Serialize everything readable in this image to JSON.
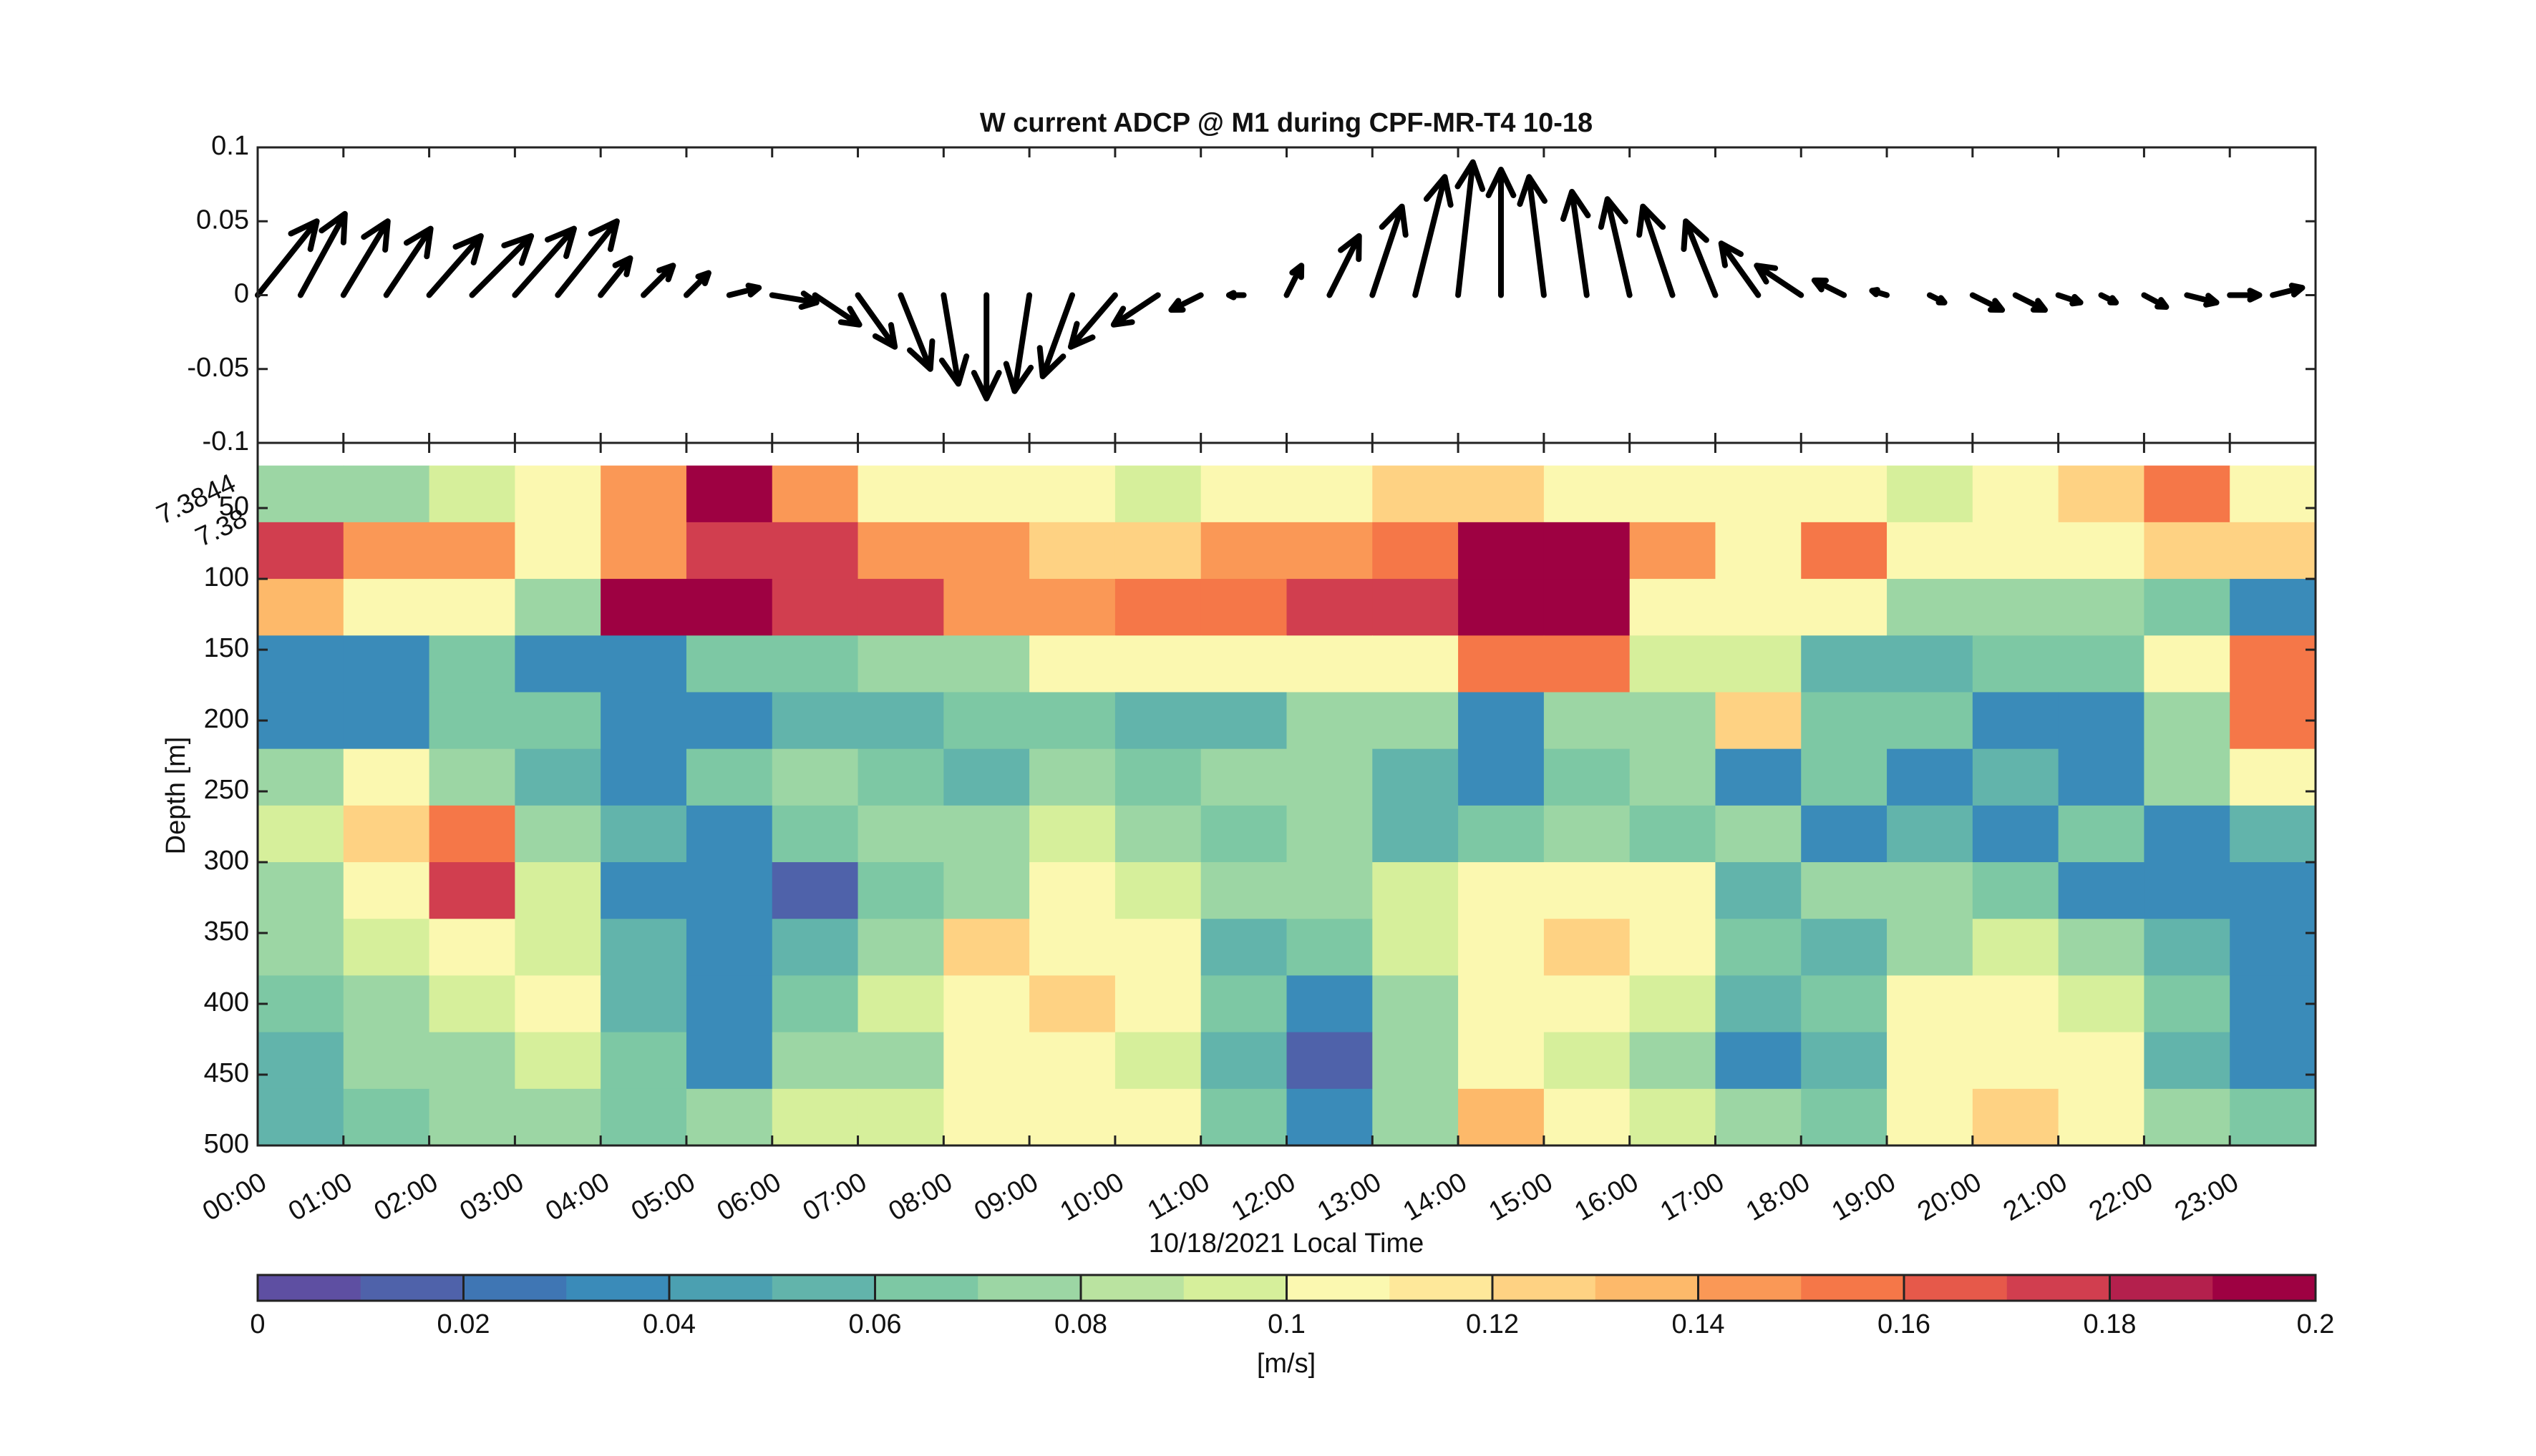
{
  "chart_data": [
    {
      "type": "quiver",
      "title": "W current ADCP @ M1 during CPF-MR-T4 10-18",
      "x": [
        0,
        0.5,
        1,
        1.5,
        2,
        2.5,
        3,
        3.5,
        4,
        4.5,
        5,
        5.5,
        6,
        6.5,
        7,
        7.5,
        8,
        8.5,
        9,
        9.5,
        10,
        10.5,
        11,
        11.5,
        12,
        12.5,
        13,
        13.5,
        14,
        14.5,
        15,
        15.5,
        16,
        16.5,
        17,
        17.5,
        18,
        18.5,
        19,
        19.5,
        20,
        20.5,
        21,
        21.5,
        22,
        22.5,
        23,
        23.5
      ],
      "u": [
        0.04,
        0.03,
        0.03,
        0.03,
        0.035,
        0.04,
        0.04,
        0.04,
        0.02,
        0.02,
        0.015,
        0.02,
        0.03,
        0.03,
        0.025,
        0.02,
        0.01,
        0,
        -0.01,
        -0.02,
        -0.03,
        -0.03,
        -0.02,
        -0.01,
        0.01,
        0.02,
        0.02,
        0.02,
        0.01,
        0,
        -0.01,
        -0.01,
        -0.015,
        -0.02,
        -0.02,
        -0.025,
        -0.03,
        -0.02,
        -0.01,
        0.01,
        0.02,
        0.02,
        0.015,
        0.01,
        0.015,
        0.02,
        0.02,
        0.02
      ],
      "v": [
        0.05,
        0.055,
        0.05,
        0.045,
        0.04,
        0.04,
        0.045,
        0.05,
        0.025,
        0.02,
        0.015,
        0.005,
        -0.005,
        -0.02,
        -0.035,
        -0.05,
        -0.06,
        -0.07,
        -0.065,
        -0.055,
        -0.035,
        -0.02,
        -0.01,
        0,
        0.02,
        0.04,
        0.06,
        0.08,
        0.09,
        0.085,
        0.08,
        0.07,
        0.065,
        0.06,
        0.05,
        0.035,
        0.02,
        0.01,
        0.003,
        -0.005,
        -0.01,
        -0.01,
        -0.005,
        -0.005,
        -0.008,
        -0.005,
        0,
        0.005
      ],
      "color": "#000000",
      "xlim": [
        0,
        24
      ],
      "xticks": [
        0,
        1,
        2,
        3,
        4,
        5,
        6,
        7,
        8,
        9,
        10,
        11,
        12,
        13,
        14,
        15,
        16,
        17,
        18,
        19,
        20,
        21,
        22,
        23
      ],
      "ylim": [
        -0.1,
        0.1
      ],
      "yticks": [
        -0.1,
        -0.05,
        0,
        0.05,
        0.1
      ]
    },
    {
      "type": "heatmap",
      "xlabel": "10/18/2021 Local Time",
      "ylabel": "Depth [m]",
      "colorbar_label": "[m/s]",
      "annotations": [
        "7.3844",
        "7.38"
      ],
      "x": [
        0.5,
        1.5,
        2.5,
        3.5,
        4.5,
        5.5,
        6.5,
        7.5,
        8.5,
        9.5,
        10.5,
        11.5,
        12.5,
        13.5,
        14.5,
        15.5,
        16.5,
        17.5,
        18.5,
        19.5,
        20.5,
        21.5,
        22.5,
        23.5
      ],
      "y": [
        40,
        80,
        120,
        160,
        200,
        240,
        280,
        320,
        360,
        400,
        440,
        480
      ],
      "z": [
        [
          0.08,
          0.08,
          0.09,
          0.1,
          0.15,
          0.19,
          0.15,
          0.1,
          0.1,
          0.1,
          0.09,
          0.1,
          0.11,
          0.12,
          0.12,
          0.11,
          0.1,
          0.1,
          0.1,
          0.09,
          0.1,
          0.12,
          0.16,
          0.1
        ],
        [
          0.17,
          0.14,
          0.14,
          0.11,
          0.15,
          0.17,
          0.17,
          0.15,
          0.15,
          0.12,
          0.12,
          0.14,
          0.14,
          0.16,
          0.2,
          0.2,
          0.14,
          0.1,
          0.16,
          0.1,
          0.1,
          0.1,
          0.12,
          0.12
        ],
        [
          0.13,
          0.1,
          0.1,
          0.08,
          0.19,
          0.19,
          0.17,
          0.17,
          0.15,
          0.15,
          0.16,
          0.16,
          0.17,
          0.17,
          0.2,
          0.2,
          0.11,
          0.1,
          0.1,
          0.08,
          0.08,
          0.08,
          0.06,
          0.04
        ],
        [
          0.04,
          0.04,
          0.06,
          0.03,
          0.03,
          0.06,
          0.06,
          0.08,
          0.08,
          0.1,
          0.1,
          0.1,
          0.1,
          0.1,
          0.16,
          0.16,
          0.09,
          0.09,
          0.05,
          0.05,
          0.06,
          0.06,
          0.1,
          0.16
        ],
        [
          0.04,
          0.04,
          0.06,
          0.06,
          0.03,
          0.03,
          0.05,
          0.05,
          0.06,
          0.06,
          0.05,
          0.05,
          0.07,
          0.07,
          0.03,
          0.08,
          0.08,
          0.12,
          0.06,
          0.06,
          0.03,
          0.03,
          0.08,
          0.16
        ],
        [
          0.08,
          0.1,
          0.07,
          0.05,
          0.04,
          0.06,
          0.08,
          0.06,
          0.05,
          0.07,
          0.06,
          0.08,
          0.07,
          0.05,
          0.03,
          0.06,
          0.08,
          0.04,
          0.06,
          0.03,
          0.05,
          0.04,
          0.08,
          0.1
        ],
        [
          0.09,
          0.12,
          0.16,
          0.08,
          0.05,
          0.03,
          0.06,
          0.08,
          0.07,
          0.09,
          0.08,
          0.06,
          0.07,
          0.05,
          0.06,
          0.08,
          0.06,
          0.07,
          0.04,
          0.05,
          0.04,
          0.06,
          0.03,
          0.05
        ],
        [
          0.08,
          0.1,
          0.17,
          0.09,
          0.04,
          0.03,
          0.02,
          0.06,
          0.08,
          0.1,
          0.09,
          0.07,
          0.08,
          0.09,
          0.1,
          0.11,
          0.1,
          0.05,
          0.08,
          0.07,
          0.06,
          0.04,
          0.03,
          0.04
        ],
        [
          0.07,
          0.09,
          0.1,
          0.09,
          0.05,
          0.04,
          0.05,
          0.08,
          0.12,
          0.11,
          0.1,
          0.05,
          0.06,
          0.09,
          0.1,
          0.12,
          0.1,
          0.06,
          0.05,
          0.08,
          0.09,
          0.08,
          0.05,
          0.03
        ],
        [
          0.06,
          0.08,
          0.09,
          0.1,
          0.05,
          0.03,
          0.06,
          0.09,
          0.1,
          0.12,
          0.1,
          0.06,
          0.03,
          0.08,
          0.1,
          0.11,
          0.09,
          0.05,
          0.06,
          0.1,
          0.1,
          0.09,
          0.06,
          0.03
        ],
        [
          0.05,
          0.07,
          0.08,
          0.09,
          0.06,
          0.04,
          0.07,
          0.08,
          0.1,
          0.1,
          0.09,
          0.05,
          0.02,
          0.07,
          0.11,
          0.09,
          0.07,
          0.04,
          0.05,
          0.1,
          0.11,
          0.1,
          0.05,
          0.03
        ],
        [
          0.05,
          0.06,
          0.07,
          0.08,
          0.06,
          0.07,
          0.09,
          0.09,
          0.1,
          0.11,
          0.1,
          0.06,
          0.03,
          0.08,
          0.13,
          0.1,
          0.09,
          0.07,
          0.06,
          0.1,
          0.12,
          0.1,
          0.08,
          0.06
        ]
      ],
      "colormap": [
        "#5e4fa2",
        "#4f62aa",
        "#3f76b4",
        "#3a8bb9",
        "#4ba0b1",
        "#62b4ab",
        "#7dc8a4",
        "#9cd6a4",
        "#bae3a0",
        "#d6ef9b",
        "#fbf8b0",
        "#fee89a",
        "#fed283",
        "#fdb96a",
        "#fa9856",
        "#f57748",
        "#e6594a",
        "#d13e4f",
        "#b4204d",
        "#9e0142"
      ],
      "clim": [
        0,
        0.2
      ],
      "cticks": [
        0,
        0.02,
        0.04,
        0.06,
        0.08,
        0.1,
        0.12,
        0.14,
        0.16,
        0.18,
        0.2
      ],
      "xlim": [
        0,
        24
      ],
      "xticks": [
        {
          "value": 0,
          "label": "00:00"
        },
        {
          "value": 1,
          "label": "01:00"
        },
        {
          "value": 2,
          "label": "02:00"
        },
        {
          "value": 3,
          "label": "03:00"
        },
        {
          "value": 4,
          "label": "04:00"
        },
        {
          "value": 5,
          "label": "05:00"
        },
        {
          "value": 6,
          "label": "06:00"
        },
        {
          "value": 7,
          "label": "07:00"
        },
        {
          "value": 8,
          "label": "08:00"
        },
        {
          "value": 9,
          "label": "09:00"
        },
        {
          "value": 10,
          "label": "10:00"
        },
        {
          "value": 11,
          "label": "11:00"
        },
        {
          "value": 12,
          "label": "12:00"
        },
        {
          "value": 13,
          "label": "13:00"
        },
        {
          "value": 14,
          "label": "14:00"
        },
        {
          "value": 15,
          "label": "15:00"
        },
        {
          "value": 16,
          "label": "16:00"
        },
        {
          "value": 17,
          "label": "17:00"
        },
        {
          "value": 18,
          "label": "18:00"
        },
        {
          "value": 19,
          "label": "19:00"
        },
        {
          "value": 20,
          "label": "20:00"
        },
        {
          "value": 21,
          "label": "21:00"
        },
        {
          "value": 22,
          "label": "22:00"
        },
        {
          "value": 23,
          "label": "23:00"
        }
      ],
      "ylim": [
        4,
        500
      ],
      "y_reversed": true,
      "yticks": [
        50,
        100,
        150,
        200,
        250,
        300,
        350,
        400,
        450,
        500
      ]
    }
  ]
}
